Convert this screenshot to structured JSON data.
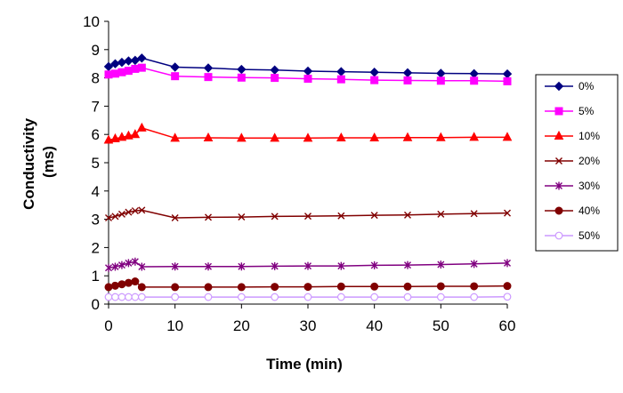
{
  "chart_data": {
    "type": "line",
    "xlabel": "Time (min)",
    "ylabel_lines": [
      "Conductivity",
      "(ms)"
    ],
    "xlim": [
      0,
      60
    ],
    "ylim": [
      0,
      10
    ],
    "xticks": [
      0,
      10,
      20,
      30,
      40,
      50,
      60
    ],
    "yticks": [
      0,
      1,
      2,
      3,
      4,
      5,
      6,
      7,
      8,
      9,
      10
    ],
    "grid": false,
    "legend_position": "right",
    "x": [
      0,
      1,
      2,
      3,
      4,
      5,
      10,
      15,
      20,
      25,
      30,
      35,
      40,
      45,
      50,
      55,
      60
    ],
    "series": [
      {
        "name": "0%",
        "color": "#000080",
        "marker": "diamond",
        "values": [
          8.4,
          8.5,
          8.55,
          8.6,
          8.62,
          8.7,
          8.38,
          8.35,
          8.3,
          8.28,
          8.24,
          8.22,
          8.2,
          8.18,
          8.16,
          8.15,
          8.14
        ]
      },
      {
        "name": "5%",
        "color": "#FF00FF",
        "marker": "square",
        "values": [
          8.12,
          8.15,
          8.2,
          8.25,
          8.32,
          8.36,
          8.06,
          8.03,
          8.01,
          8.0,
          7.97,
          7.95,
          7.92,
          7.91,
          7.9,
          7.9,
          7.88
        ]
      },
      {
        "name": "10%",
        "color": "#FF0000",
        "marker": "triangle",
        "values": [
          5.8,
          5.85,
          5.9,
          5.95,
          6.0,
          6.23,
          5.87,
          5.88,
          5.87,
          5.87,
          5.87,
          5.88,
          5.88,
          5.89,
          5.89,
          5.9,
          5.9
        ]
      },
      {
        "name": "20%",
        "color": "#800000",
        "marker": "x",
        "values": [
          3.05,
          3.1,
          3.18,
          3.25,
          3.3,
          3.32,
          3.05,
          3.07,
          3.08,
          3.1,
          3.11,
          3.12,
          3.14,
          3.15,
          3.18,
          3.2,
          3.22
        ]
      },
      {
        "name": "30%",
        "color": "#800080",
        "marker": "star",
        "values": [
          1.28,
          1.32,
          1.38,
          1.45,
          1.5,
          1.32,
          1.33,
          1.33,
          1.33,
          1.34,
          1.35,
          1.35,
          1.37,
          1.38,
          1.4,
          1.42,
          1.45
        ]
      },
      {
        "name": "40%",
        "color": "#800000",
        "marker": "circle",
        "values": [
          0.6,
          0.65,
          0.7,
          0.75,
          0.8,
          0.6,
          0.6,
          0.6,
          0.6,
          0.61,
          0.61,
          0.62,
          0.62,
          0.62,
          0.63,
          0.63,
          0.64
        ]
      },
      {
        "name": "50%",
        "color": "#CC99FF",
        "marker": "open-circle",
        "values": [
          0.25,
          0.25,
          0.25,
          0.25,
          0.25,
          0.25,
          0.25,
          0.25,
          0.25,
          0.25,
          0.25,
          0.25,
          0.25,
          0.25,
          0.25,
          0.25,
          0.26
        ]
      }
    ]
  }
}
